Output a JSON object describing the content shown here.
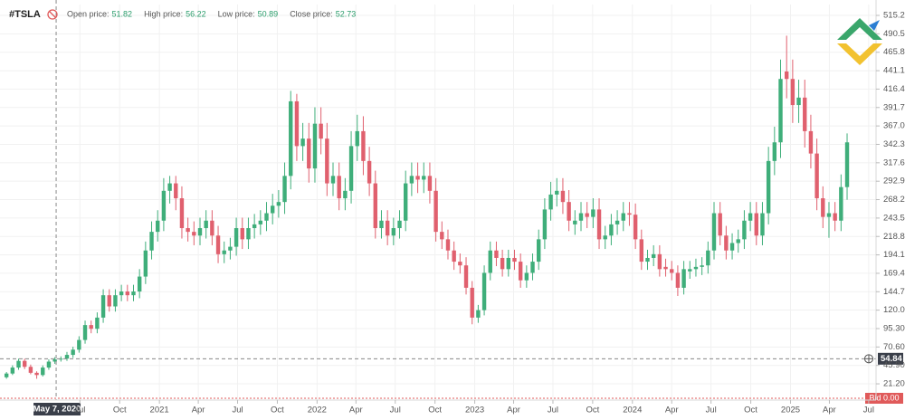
{
  "chart_data": {
    "type": "candlestick",
    "symbol": "#TSLA",
    "ohlc_legend": [
      {
        "label": "Open price:",
        "value": 51.82
      },
      {
        "label": "High price:",
        "value": 56.22
      },
      {
        "label": "Low price:",
        "value": 50.89
      },
      {
        "label": "Close price:",
        "value": 52.73
      }
    ],
    "crosshair_x": "2020-05-07",
    "crosshair_label": "May 7, 2020",
    "current_price": 54.84,
    "bid_label": "Bid 0.00",
    "up_color": "#3fae7a",
    "down_color": "#e0606e",
    "grid": true,
    "xlim": [
      "2019-12-29",
      "2025-07-18"
    ],
    "xticks": [
      {
        "value": "2020-07-01",
        "label": "Jul"
      },
      {
        "value": "2020-10-01",
        "label": "Oct"
      },
      {
        "value": "2021-01-01",
        "label": "2021"
      },
      {
        "value": "2021-04-01",
        "label": "Apr"
      },
      {
        "value": "2021-07-01",
        "label": "Jul"
      },
      {
        "value": "2021-10-01",
        "label": "Oct"
      },
      {
        "value": "2022-01-01",
        "label": "2022"
      },
      {
        "value": "2022-04-01",
        "label": "Apr"
      },
      {
        "value": "2022-07-01",
        "label": "Jul"
      },
      {
        "value": "2022-10-01",
        "label": "Oct"
      },
      {
        "value": "2023-01-01",
        "label": "2023"
      },
      {
        "value": "2023-04-01",
        "label": "Apr"
      },
      {
        "value": "2023-07-01",
        "label": "Jul"
      },
      {
        "value": "2023-10-01",
        "label": "Oct"
      },
      {
        "value": "2024-01-01",
        "label": "2024"
      },
      {
        "value": "2024-04-01",
        "label": "Apr"
      },
      {
        "value": "2024-07-01",
        "label": "Jul"
      },
      {
        "value": "2024-10-01",
        "label": "Oct"
      },
      {
        "value": "2025-01-01",
        "label": "2025"
      },
      {
        "value": "2025-04-01",
        "label": "Apr"
      },
      {
        "value": "2025-07-01",
        "label": "Jul"
      }
    ],
    "ylim": [
      -0.6,
      529.8
    ],
    "yticks": [
      {
        "value": 21.2,
        "label": "21.20"
      },
      {
        "value": 45.9,
        "label": "45.90"
      },
      {
        "value": 70.6,
        "label": "70.60"
      },
      {
        "value": 95.3,
        "label": "95.30"
      },
      {
        "value": 120,
        "label": "120.00"
      },
      {
        "value": 144.7,
        "label": "144.70"
      },
      {
        "value": 169.4,
        "label": "169.40"
      },
      {
        "value": 194.1,
        "label": "194.10"
      },
      {
        "value": 218.8,
        "label": "218.80"
      },
      {
        "value": 243.5,
        "label": "243.50"
      },
      {
        "value": 268.2,
        "label": "268.20"
      },
      {
        "value": 292.9,
        "label": "292.90"
      },
      {
        "value": 317.6,
        "label": "317.60"
      },
      {
        "value": 342.3,
        "label": "342.30"
      },
      {
        "value": 367,
        "label": "367.00"
      },
      {
        "value": 391.7,
        "label": "391.70"
      },
      {
        "value": 416.4,
        "label": "416.40"
      },
      {
        "value": 441.1,
        "label": "441.10"
      },
      {
        "value": 465.8,
        "label": "465.80"
      },
      {
        "value": 490.5,
        "label": "490.50"
      },
      {
        "value": 515.2,
        "label": "515.20"
      }
    ],
    "x": [
      "2020-01-13",
      "2020-01-27",
      "2020-02-10",
      "2020-02-24",
      "2020-03-09",
      "2020-03-23",
      "2020-04-06",
      "2020-04-20",
      "2020-05-04",
      "2020-05-18",
      "2020-06-01",
      "2020-06-15",
      "2020-06-29",
      "2020-07-13",
      "2020-07-27",
      "2020-08-10",
      "2020-08-24",
      "2020-09-07",
      "2020-09-21",
      "2020-10-05",
      "2020-10-19",
      "2020-11-02",
      "2020-11-16",
      "2020-11-30",
      "2020-12-14",
      "2020-12-28",
      "2021-01-11",
      "2021-01-25",
      "2021-02-08",
      "2021-02-22",
      "2021-03-08",
      "2021-03-22",
      "2021-04-05",
      "2021-04-19",
      "2021-05-03",
      "2021-05-17",
      "2021-05-31",
      "2021-06-14",
      "2021-06-28",
      "2021-07-12",
      "2021-07-26",
      "2021-08-09",
      "2021-08-23",
      "2021-09-06",
      "2021-09-20",
      "2021-10-04",
      "2021-10-18",
      "2021-11-01",
      "2021-11-15",
      "2021-11-29",
      "2021-12-13",
      "2021-12-27",
      "2022-01-10",
      "2022-01-24",
      "2022-02-07",
      "2022-02-21",
      "2022-03-07",
      "2022-03-21",
      "2022-04-04",
      "2022-04-18",
      "2022-05-02",
      "2022-05-16",
      "2022-05-30",
      "2022-06-13",
      "2022-06-27",
      "2022-07-11",
      "2022-07-25",
      "2022-08-08",
      "2022-08-22",
      "2022-09-05",
      "2022-09-19",
      "2022-10-03",
      "2022-10-17",
      "2022-10-31",
      "2022-11-14",
      "2022-11-28",
      "2022-12-12",
      "2022-12-26",
      "2023-01-09",
      "2023-01-23",
      "2023-02-06",
      "2023-02-20",
      "2023-03-06",
      "2023-03-20",
      "2023-04-03",
      "2023-04-17",
      "2023-05-01",
      "2023-05-15",
      "2023-05-29",
      "2023-06-12",
      "2023-06-26",
      "2023-07-10",
      "2023-07-24",
      "2023-08-07",
      "2023-08-21",
      "2023-09-04",
      "2023-09-18",
      "2023-10-02",
      "2023-10-16",
      "2023-10-30",
      "2023-11-13",
      "2023-11-27",
      "2023-12-11",
      "2023-12-25",
      "2024-01-08",
      "2024-01-22",
      "2024-02-05",
      "2024-02-19",
      "2024-03-04",
      "2024-03-18",
      "2024-04-01",
      "2024-04-15",
      "2024-04-29",
      "2024-05-13",
      "2024-05-27",
      "2024-06-10",
      "2024-06-24",
      "2024-07-08",
      "2024-07-22",
      "2024-08-05",
      "2024-08-19",
      "2024-09-02",
      "2024-09-16",
      "2024-09-30",
      "2024-10-14",
      "2024-10-28",
      "2024-11-11",
      "2024-11-25",
      "2024-12-09",
      "2024-12-23",
      "2025-01-06",
      "2025-01-20",
      "2025-02-03",
      "2025-02-17",
      "2025-03-03",
      "2025-03-17",
      "2025-03-31",
      "2025-04-14",
      "2025-04-28",
      "2025-05-12"
    ],
    "open": [
      30,
      35,
      43,
      52,
      44,
      36,
      33,
      43,
      51,
      54,
      55,
      60,
      67,
      80,
      100,
      95,
      110,
      140,
      125,
      140,
      145,
      140,
      145,
      165,
      200,
      225,
      240,
      280,
      290,
      270,
      230,
      225,
      220,
      230,
      240,
      220,
      195,
      200,
      205,
      230,
      215,
      230,
      235,
      240,
      250,
      260,
      265,
      300,
      400,
      340,
      350,
      310,
      370,
      350,
      290,
      300,
      270,
      280,
      340,
      360,
      320,
      290,
      230,
      240,
      220,
      230,
      240,
      290,
      300,
      295,
      300,
      280,
      225,
      215,
      200,
      185,
      180,
      150,
      110,
      120,
      170,
      200,
      190,
      175,
      190,
      185,
      160,
      170,
      185,
      215,
      255,
      275,
      280,
      265,
      235,
      240,
      250,
      245,
      255,
      215,
      220,
      235,
      240,
      250,
      248,
      215,
      185,
      190,
      195,
      178,
      175,
      170,
      150,
      172,
      175,
      178,
      180,
      200,
      250,
      220,
      200,
      210,
      215,
      240,
      250,
      220,
      250,
      320,
      345,
      440,
      430,
      395,
      405,
      360,
      330,
      270,
      245,
      250,
      240,
      285
    ],
    "high": [
      37,
      46,
      55,
      55,
      47,
      38,
      46,
      54,
      57,
      58,
      64,
      71,
      85,
      106,
      106,
      117,
      148,
      148,
      148,
      154,
      154,
      154,
      175,
      212,
      239,
      254,
      297,
      300,
      300,
      286,
      244,
      239,
      244,
      254,
      254,
      233,
      212,
      217,
      244,
      244,
      244,
      249,
      254,
      265,
      276,
      281,
      318,
      414,
      410,
      371,
      371,
      392,
      392,
      371,
      318,
      318,
      297,
      360,
      382,
      380,
      339,
      307,
      254,
      254,
      244,
      254,
      307,
      318,
      318,
      318,
      318,
      297,
      239,
      228,
      212,
      196,
      191,
      159,
      127,
      180,
      212,
      212,
      201,
      201,
      201,
      196,
      180,
      196,
      228,
      270,
      292,
      297,
      297,
      281,
      254,
      265,
      265,
      270,
      270,
      233,
      249,
      254,
      265,
      265,
      263,
      228,
      201,
      207,
      207,
      189,
      186,
      180,
      186,
      186,
      189,
      191,
      212,
      265,
      265,
      233,
      223,
      228,
      254,
      265,
      265,
      265,
      339,
      366,
      456,
      488,
      456,
      429,
      429,
      382,
      350,
      286,
      265,
      265,
      302,
      357
    ],
    "low": [
      28,
      33,
      40,
      41,
      34,
      28,
      31,
      40,
      48,
      51,
      52,
      56,
      63,
      75,
      89,
      89,
      103,
      118,
      118,
      132,
      132,
      132,
      136,
      155,
      188,
      212,
      226,
      263,
      254,
      216,
      212,
      207,
      207,
      216,
      207,
      183,
      183,
      188,
      193,
      202,
      202,
      216,
      221,
      226,
      235,
      244,
      249,
      282,
      320,
      320,
      291,
      291,
      329,
      273,
      273,
      254,
      254,
      263,
      320,
      301,
      273,
      216,
      216,
      207,
      207,
      216,
      226,
      273,
      277,
      277,
      263,
      212,
      202,
      188,
      174,
      169,
      141,
      101,
      103,
      113,
      160,
      179,
      165,
      165,
      174,
      150,
      150,
      160,
      174,
      202,
      240,
      259,
      249,
      226,
      221,
      226,
      230,
      230,
      202,
      202,
      207,
      221,
      226,
      233,
      202,
      174,
      174,
      179,
      165,
      165,
      160,
      139,
      141,
      162,
      165,
      167,
      169,
      188,
      207,
      188,
      188,
      197,
      202,
      226,
      207,
      207,
      235,
      301,
      324,
      404,
      371,
      371,
      338,
      310,
      254,
      230,
      217,
      226,
      226,
      268
    ],
    "close": [
      35,
      43,
      52,
      44,
      36,
      33,
      43,
      51,
      54,
      55,
      60,
      67,
      80,
      100,
      95,
      110,
      140,
      125,
      140,
      145,
      140,
      145,
      165,
      200,
      225,
      240,
      280,
      290,
      270,
      230,
      225,
      220,
      230,
      240,
      220,
      195,
      200,
      205,
      230,
      215,
      230,
      235,
      240,
      250,
      260,
      265,
      300,
      400,
      340,
      350,
      310,
      370,
      350,
      290,
      300,
      270,
      280,
      340,
      360,
      320,
      290,
      230,
      240,
      220,
      230,
      240,
      290,
      300,
      295,
      300,
      280,
      225,
      215,
      200,
      185,
      180,
      150,
      110,
      120,
      170,
      200,
      190,
      175,
      190,
      185,
      160,
      170,
      185,
      215,
      255,
      275,
      280,
      265,
      240,
      240,
      250,
      245,
      255,
      215,
      220,
      235,
      240,
      250,
      248,
      215,
      185,
      190,
      195,
      175,
      175,
      170,
      150,
      175,
      175,
      178,
      180,
      200,
      250,
      220,
      200,
      210,
      215,
      240,
      250,
      220,
      250,
      320,
      345,
      430,
      430,
      395,
      405,
      360,
      330,
      270,
      245,
      250,
      240,
      285,
      345
    ]
  }
}
